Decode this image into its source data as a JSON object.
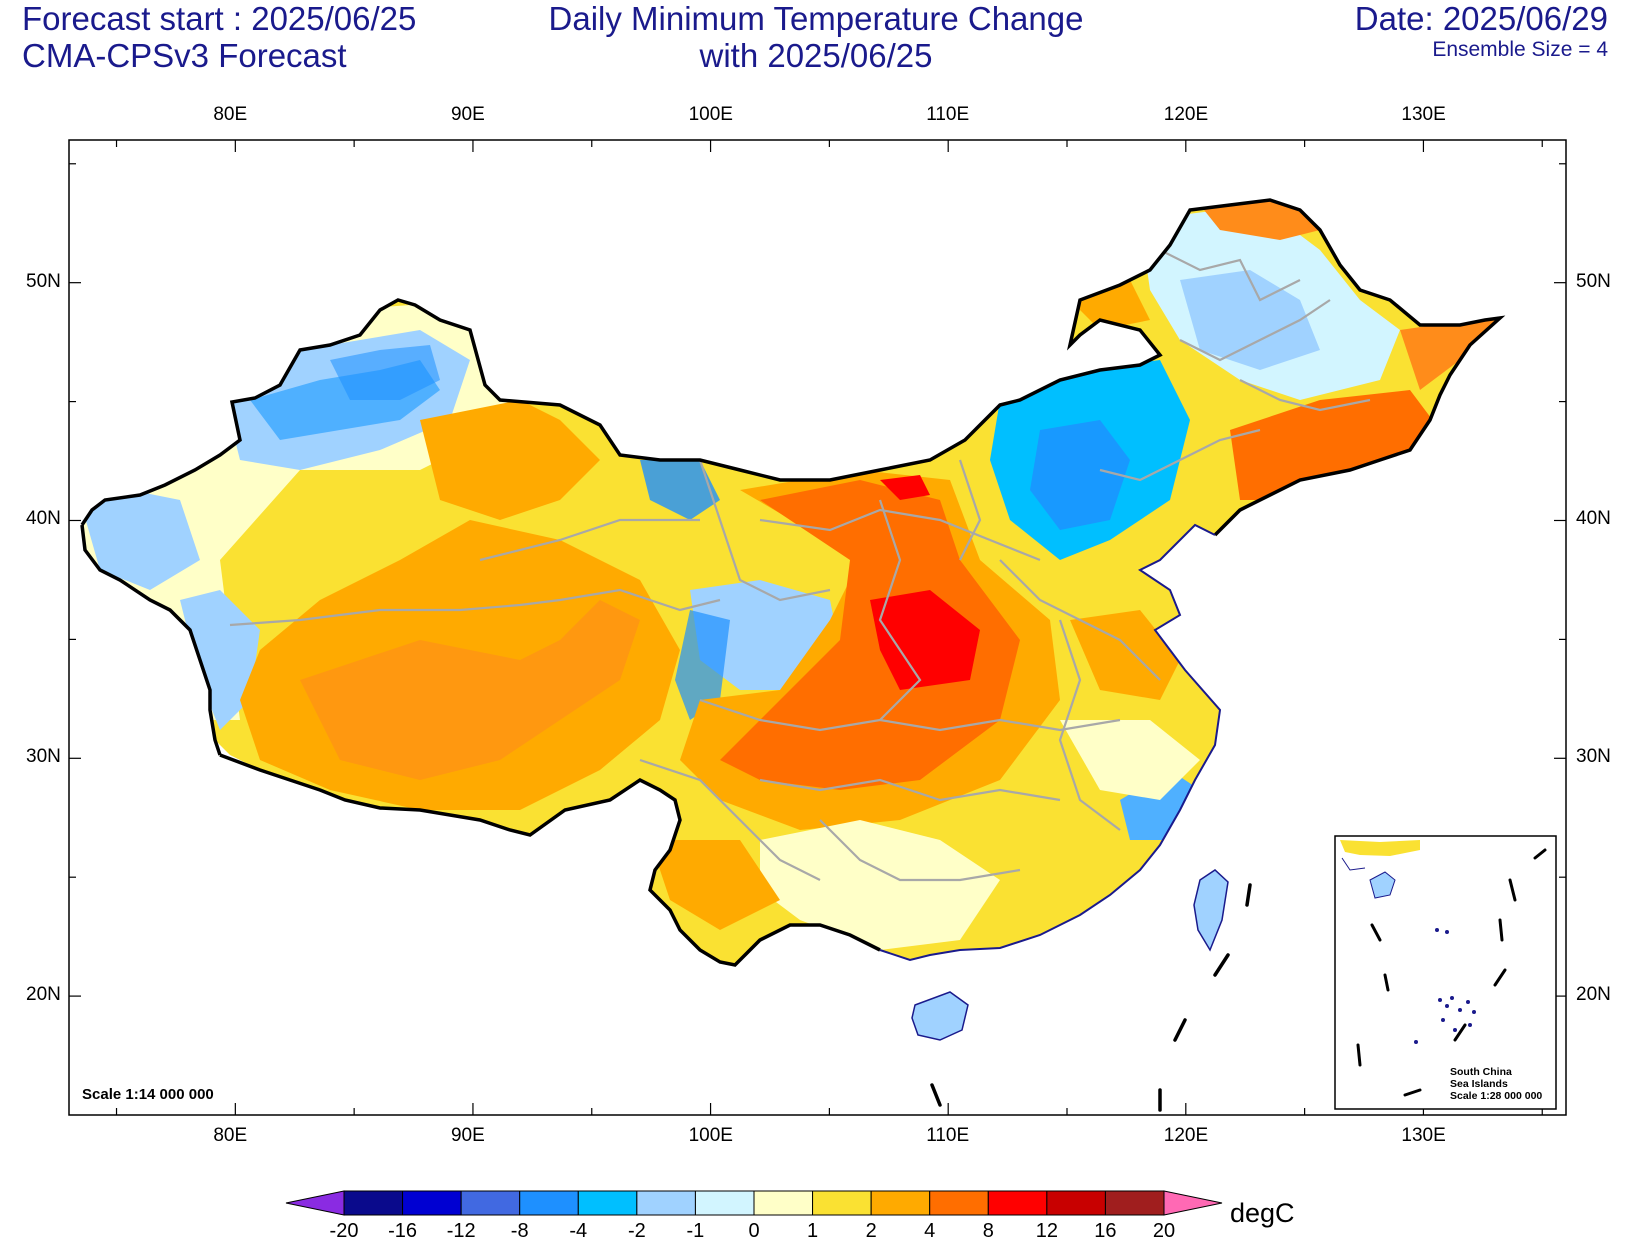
{
  "header": {
    "left_line1": "Forecast start : 2025/06/25",
    "left_line2": "CMA-CPSv3 Forecast",
    "center_line1": "Daily Minimum Temperature Change",
    "center_line2": "with 2025/06/25",
    "right_line1": "Date: 2025/06/29",
    "right_line2": "Ensemble Size = 4"
  },
  "axes": {
    "lon_labels": [
      "80E",
      "90E",
      "100E",
      "110E",
      "120E",
      "130E"
    ],
    "lat_labels": [
      "50N",
      "40N",
      "30N",
      "20N"
    ],
    "lon_range": [
      73,
      136
    ],
    "lat_range": [
      15,
      56
    ]
  },
  "map_notes": {
    "scale_main": "Scale 1:14 000 000",
    "inset_line1": "South China",
    "inset_line2": "Sea Islands",
    "inset_line3": "Scale 1:28 000 000"
  },
  "colorbar": {
    "unit": "degC",
    "labels": [
      "-20",
      "-16",
      "-12",
      "-8",
      "-4",
      "-2",
      "-1",
      "0",
      "1",
      "2",
      "4",
      "8",
      "12",
      "16",
      "20"
    ],
    "below_color": "#8a2be2",
    "above_color": "#ff69b4",
    "colors": [
      "#0a0a8c",
      "#0000d2",
      "#4169e1",
      "#1e90ff",
      "#00bfff",
      "#a0d2ff",
      "#d2f5ff",
      "#ffffc8",
      "#fae132",
      "#ffaa00",
      "#ff6e00",
      "#ff0000",
      "#c80000",
      "#a01e1e"
    ]
  },
  "colors": {
    "title_text": "#1a1a8c",
    "border": "#000000",
    "province": "#a8a8a8",
    "coast": "#1a1a8c"
  }
}
